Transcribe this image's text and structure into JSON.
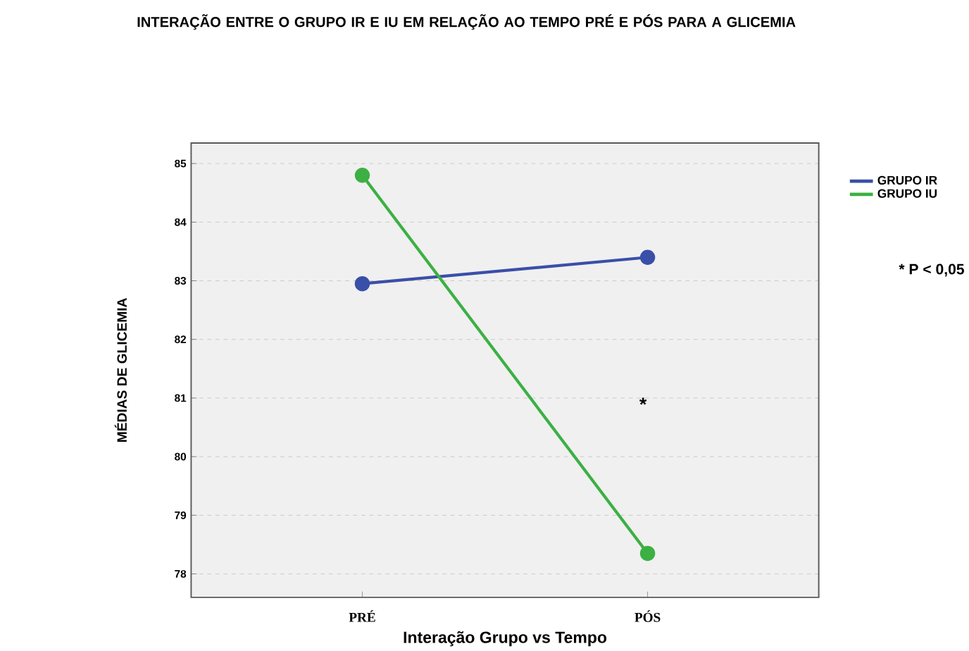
{
  "chart_data": {
    "type": "line",
    "title": "INTERAÇÃO ENTRE O GRUPO IR E IU EM RELAÇÃO AO TEMPO PRÉ E PÓS PARA A GLICEMIA",
    "xlabel": "Interação Grupo vs Tempo",
    "ylabel": "MÉDIAS DE GLICEMIA",
    "categories": [
      "PRÉ",
      "PÓS"
    ],
    "series": [
      {
        "name": "GRUPO IR",
        "color": "#3a4fa8",
        "values": [
          82.95,
          83.4
        ]
      },
      {
        "name": "GRUPO IU",
        "color": "#3cb043",
        "values": [
          84.8,
          78.35
        ]
      }
    ],
    "ylim": [
      77.6,
      85.35
    ],
    "yticks": [
      78,
      79,
      80,
      81,
      82,
      83,
      84,
      85
    ],
    "grid": "y",
    "legend": "top right",
    "marker": "circle",
    "line_style": "solid",
    "annotations": [
      "*",
      "* P < 0,05"
    ]
  }
}
